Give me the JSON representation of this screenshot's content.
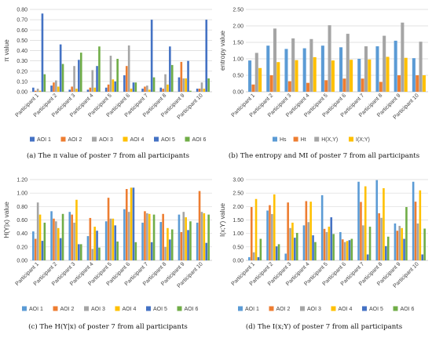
{
  "chart_data": [
    {
      "type": "bar",
      "caption": "(a) The π value of poster 7 from all participants",
      "ylabel": "π value",
      "ylim": [
        0,
        0.8
      ],
      "yticks": [
        "0.00",
        "0.10",
        "0.20",
        "0.30",
        "0.40",
        "0.50",
        "0.60",
        "0.70",
        "0.80"
      ],
      "categories": [
        "Participant 1",
        "Participant 2",
        "Participant 3",
        "Participant 4",
        "Participant 5",
        "Participant 6",
        "Participant 7",
        "Participant 8",
        "Participant 9",
        "Participant 10"
      ],
      "grid": true,
      "legend": "bottom",
      "series": [
        {
          "name": "AOI 1",
          "color": "#4472C4",
          "values": [
            0.04,
            0.06,
            0.02,
            0.02,
            0.04,
            0.16,
            0.03,
            0.04,
            0.14,
            0.03
          ]
        },
        {
          "name": "AOI 2",
          "color": "#ED7D31",
          "values": [
            0.01,
            0.09,
            0.05,
            0.04,
            0.07,
            0.25,
            0.05,
            0.03,
            0.29,
            0.03
          ]
        },
        {
          "name": "AOI 3",
          "color": "#A5A5A5",
          "values": [
            0.03,
            0.11,
            0.25,
            0.21,
            0.35,
            0.45,
            0.06,
            0.17,
            0.13,
            0.09
          ]
        },
        {
          "name": "AOI 4",
          "color": "#FFC000",
          "values": [
            0.01,
            0.05,
            0.03,
            0.04,
            0.12,
            0.03,
            0.02,
            0.07,
            0.13,
            0.03
          ]
        },
        {
          "name": "AOI 5",
          "color": "#4472C4",
          "values": [
            0.76,
            0.46,
            0.31,
            0.25,
            0.1,
            0.09,
            0.7,
            0.44,
            0.3,
            0.7
          ]
        },
        {
          "name": "AOI 6",
          "color": "#70AD47",
          "values": [
            0.17,
            0.27,
            0.38,
            0.44,
            0.32,
            0.09,
            0.14,
            0.26,
            0.01,
            0.13
          ]
        }
      ]
    },
    {
      "type": "bar",
      "caption": "(b) The entropy and MI of poster 7 from all participants",
      "ylabel": "entropy value",
      "ylim": [
        0,
        2.5
      ],
      "yticks": [
        "0.00",
        "0.50",
        "1.00",
        "1.50",
        "2.00",
        "2.50"
      ],
      "categories": [
        "Participant 1",
        "Participant 2",
        "Participant 3",
        "Participant 4",
        "Participant 5",
        "Participant 6",
        "Participant 7",
        "Participant 8",
        "Participant 9",
        "Participant 10"
      ],
      "grid": true,
      "legend": "bottom",
      "series": [
        {
          "name": "Hs",
          "color": "#5B9BD5",
          "values": [
            0.95,
            1.4,
            1.3,
            1.32,
            1.4,
            1.35,
            1.0,
            1.38,
            1.55,
            1.02
          ]
        },
        {
          "name": "Ht",
          "color": "#ED7D31",
          "values": [
            0.22,
            0.5,
            0.32,
            0.27,
            0.35,
            0.4,
            0.4,
            0.3,
            0.5,
            0.5
          ]
        },
        {
          "name": "H(X,Y)",
          "color": "#A5A5A5",
          "values": [
            1.18,
            1.92,
            1.62,
            1.6,
            2.02,
            1.76,
            1.38,
            1.7,
            2.1,
            1.52
          ]
        },
        {
          "name": "I(X;Y)",
          "color": "#FFC000",
          "values": [
            0.72,
            0.9,
            0.96,
            1.05,
            0.95,
            0.97,
            0.98,
            1.06,
            1.03,
            0.5
          ]
        }
      ]
    },
    {
      "type": "bar",
      "caption": "(c) The H(Y|x) of poster 7 from all participants",
      "ylabel": "H(Y|x) value",
      "ylim": [
        0,
        1.2
      ],
      "yticks": [
        "0.00",
        "0.20",
        "0.40",
        "0.60",
        "0.80",
        "1.00",
        "1.20"
      ],
      "categories": [
        "Participant 1",
        "Participant 2",
        "Participant 3",
        "Participant 4",
        "Participant 5",
        "Participant 6",
        "Participant 7",
        "Participant 8",
        "Participant 9",
        "Participant 10"
      ],
      "grid": true,
      "legend": "bottom",
      "series": [
        {
          "name": "AOI 1",
          "color": "#5B9BD5",
          "values": [
            0.43,
            0.73,
            0.72,
            0.36,
            0.58,
            0.76,
            0.56,
            0.57,
            0.68,
            0.56
          ]
        },
        {
          "name": "AOI 2",
          "color": "#ED7D31",
          "values": [
            0.32,
            0.62,
            0.68,
            0.63,
            0.93,
            1.06,
            0.73,
            0.69,
            0.42,
            1.03
          ]
        },
        {
          "name": "AOI 3",
          "color": "#A5A5A5",
          "values": [
            0.86,
            0.58,
            0.56,
            0.17,
            0.62,
            0.72,
            0.7,
            0.2,
            0.72,
            0.72
          ]
        },
        {
          "name": "AOI 4",
          "color": "#FFC000",
          "values": [
            0.68,
            0.48,
            0.9,
            0.5,
            0.62,
            1.08,
            0.69,
            0.48,
            0.64,
            0.7
          ]
        },
        {
          "name": "AOI 5",
          "color": "#4472C4",
          "values": [
            0.29,
            0.33,
            0.24,
            0.44,
            0.52,
            1.08,
            0.27,
            0.31,
            0.45,
            0.26
          ]
        },
        {
          "name": "AOI 6",
          "color": "#70AD47",
          "values": [
            0.56,
            0.69,
            0.24,
            0.19,
            0.28,
            0.27,
            0.68,
            0.46,
            0.58,
            0.68
          ]
        }
      ]
    },
    {
      "type": "bar",
      "caption": "(d) The I(x;Y) of poster 7 from all participants",
      "ylabel": "I(x;Y) value",
      "ylim": [
        0,
        3.0
      ],
      "yticks": [
        "0.00",
        "0.50",
        "1.00",
        "1.50",
        "2.00",
        "2.50",
        "3.00"
      ],
      "categories": [
        "Participant 1",
        "Participant 2",
        "Participant 3",
        "Participant 4",
        "Participant 5",
        "Participant 6",
        "Participant 7",
        "Participant 8",
        "Participant 9",
        "Participant 10"
      ],
      "grid": true,
      "legend": "bottom",
      "series": [
        {
          "name": "AOI 1",
          "color": "#5B9BD5",
          "values": [
            0.12,
            1.85,
            0.25,
            1.3,
            2.42,
            1.05,
            2.92,
            2.98,
            1.37,
            2.92
          ]
        },
        {
          "name": "AOI 2",
          "color": "#ED7D31",
          "values": [
            1.98,
            2.05,
            2.15,
            2.2,
            1.17,
            0.78,
            2.17,
            1.75,
            1.1,
            2.18
          ]
        },
        {
          "name": "AOI 3",
          "color": "#A5A5A5",
          "values": [
            0.3,
            1.72,
            1.2,
            1.42,
            1.05,
            0.68,
            1.3,
            1.58,
            1.28,
            1.37
          ]
        },
        {
          "name": "AOI 4",
          "color": "#FFC000",
          "values": [
            2.28,
            2.45,
            1.4,
            2.18,
            1.25,
            0.72,
            2.75,
            2.68,
            1.2,
            2.6
          ]
        },
        {
          "name": "AOI 5",
          "color": "#4472C4",
          "values": [
            0.12,
            0.52,
            0.84,
            0.93,
            1.6,
            0.75,
            0.22,
            0.53,
            0.8,
            0.22
          ]
        },
        {
          "name": "AOI 6",
          "color": "#70AD47",
          "values": [
            0.8,
            0.6,
            1.02,
            0.68,
            0.98,
            0.8,
            1.25,
            0.88,
            1.98,
            1.18
          ]
        }
      ]
    }
  ]
}
